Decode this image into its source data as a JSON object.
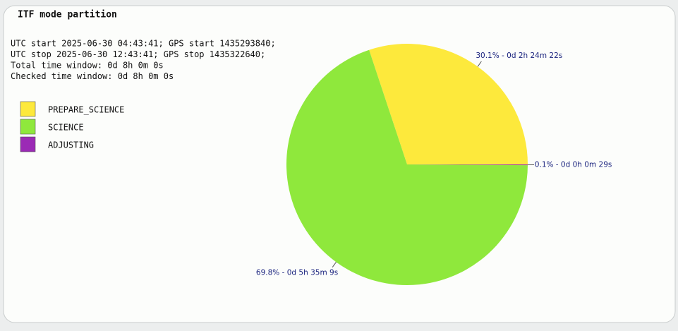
{
  "panel": {
    "title": "ITF mode partition",
    "lines": [
      "UTC start 2025-06-30 04:43:41; GPS start 1435293840;",
      "UTC stop 2025-06-30 12:43:41; GPS stop 1435322640;",
      "Total time window: 0d 8h 0m 0s",
      "Checked time window: 0d 8h 0m 0s"
    ]
  },
  "chart_data": {
    "type": "pie",
    "categories": [
      "PREPARE_SCIENCE",
      "SCIENCE",
      "ADJUSTING"
    ],
    "values": [
      30.1,
      69.8,
      0.1
    ],
    "value_labels": [
      "30.1% - 0d 2h 24m 22s",
      "69.8% - 0d 5h 35m 9s",
      "0.1% - 0d 0h 0m 29s"
    ],
    "colors": [
      "#fde93c",
      "#8fe83c",
      "#9b2ab5"
    ],
    "legend": "upper left"
  }
}
